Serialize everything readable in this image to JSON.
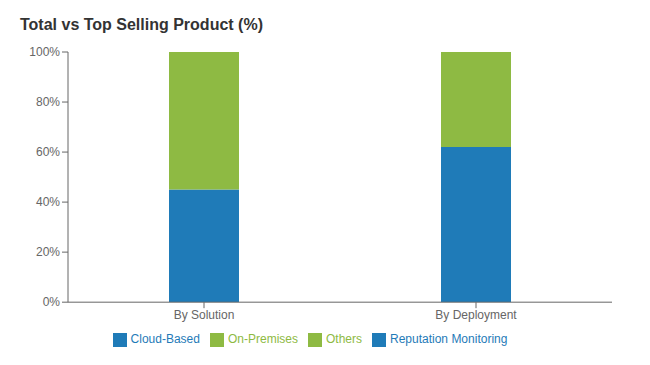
{
  "chart_data": {
    "type": "bar",
    "title": "Total vs Top Selling Product (%)",
    "categories": [
      "By Solution",
      "By Deployment"
    ],
    "stacked": true,
    "series": [
      {
        "name": "Reputation Monitoring",
        "color": "#1f7bb8",
        "values": [
          45,
          null
        ]
      },
      {
        "name": "Others",
        "color": "#8eba43",
        "values": [
          55,
          null
        ]
      },
      {
        "name": "Cloud-Based",
        "color": "#1f7bb8",
        "values": [
          null,
          62
        ]
      },
      {
        "name": "On-Premises",
        "color": "#8eba43",
        "values": [
          null,
          38
        ]
      }
    ],
    "ylim": [
      0,
      100
    ],
    "yticks": [
      {
        "value": 0,
        "label": "0%"
      },
      {
        "value": 20,
        "label": "20%"
      },
      {
        "value": 40,
        "label": "40%"
      },
      {
        "value": 60,
        "label": "60%"
      },
      {
        "value": 80,
        "label": "80%"
      },
      {
        "value": 100,
        "label": "100%"
      }
    ],
    "grid": false,
    "legend": "bottom"
  }
}
